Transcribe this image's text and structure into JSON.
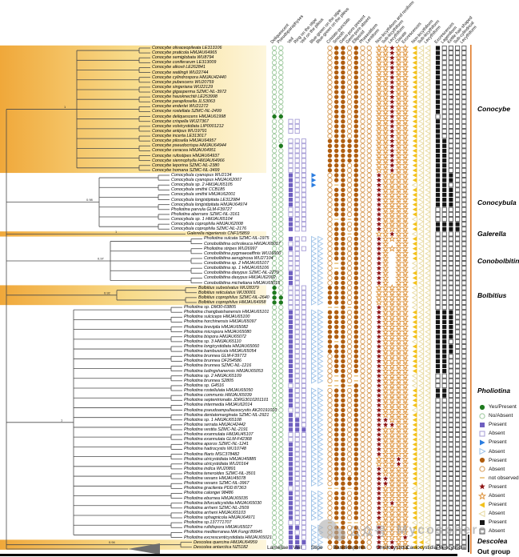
{
  "colors": {
    "highlight_left": "#f0a83a",
    "highlight_mid": "#f8dc8c",
    "highlight_right": "#fdf6dd",
    "tree_line": "#4a4a4a",
    "orange_bar": "#e07b2a",
    "black_bar": "#0a0a0a",
    "green_fill": "#1f7a1f",
    "green_outline": "#9cc89c",
    "purple_fill": "#6f5fc0",
    "purple_outline": "#a79ed6",
    "blue_fill": "#2b7de0",
    "blue_outline": "#9fc3e8",
    "brown_fill": "#b05e10",
    "brown_outline": "#d79b55",
    "star_fill": "#8e1414",
    "star_outline": "#de9540",
    "yellow_fill": "#f2c11d",
    "yellow_outline": "#e7d9a0",
    "black_fill": "#161616",
    "black_outline": "#555555",
    "dash": "#eac37d"
  },
  "headers": {
    "columns": [
      "Deliquescent",
      "Pseudoparaphyses",
      "Veil",
      "Ring on the stipe",
      "Veil on the pileus",
      "Blue-green on the stipe",
      "Blue-green on the pileus",
      "Cristate-punctate",
      "Smooth",
      "Germ-pore present",
      "Germ-pore absent",
      "Ellipsoid",
      "Phaseoliform",
      "Lentiform",
      "Non-lecythiform and reniform",
      "Sub-lecythiform",
      "Lecythiform",
      "Clavate",
      "Excrescences",
      "Non-lecythiform",
      "Sub-lecythiform",
      "Lecythiform",
      "Excrescences",
      "Lageniform",
      "Kettle hair-shaped",
      "Sub-cylindrical",
      "Lecythiform"
    ],
    "groups": [
      {
        "label": "Lamellae",
        "count": 2,
        "variant": "green"
      },
      {
        "label": "Veil",
        "count": 3,
        "variant": "purple"
      },
      {
        "label": "Stipe",
        "count": 2,
        "variant": "blue"
      },
      {
        "label": "Basidiospores",
        "count": 7,
        "variant": "brown"
      },
      {
        "label": "Cheilocystidia",
        "count": 5,
        "variant": "red-star"
      },
      {
        "label": "Caulocystidia",
        "count": 3,
        "variant": "yellow"
      },
      {
        "label": "Pileocystidia",
        "count": 5,
        "variant": "black"
      }
    ]
  },
  "legend": [
    {
      "variant": "green",
      "state": "filled",
      "label": "Yes/Present"
    },
    {
      "variant": "green",
      "state": "outline",
      "label": "No/Absent"
    },
    {
      "variant": "purple",
      "state": "filled",
      "label": "Present"
    },
    {
      "variant": "purple",
      "state": "outline",
      "label": "Absent"
    },
    {
      "variant": "blue",
      "state": "filled",
      "label": "Present"
    },
    {
      "variant": "blue",
      "state": "outline",
      "label": "Absent"
    },
    {
      "variant": "brown",
      "state": "filled",
      "label": "Present"
    },
    {
      "variant": "brown",
      "state": "outline",
      "label": "Absent"
    },
    {
      "variant": "dash",
      "state": "dash",
      "label": "not observed"
    },
    {
      "variant": "red-star",
      "state": "filled",
      "label": "Present"
    },
    {
      "variant": "red-star",
      "state": "outline",
      "label": "Absent"
    },
    {
      "variant": "yellow",
      "state": "filled",
      "label": "Present"
    },
    {
      "variant": "yellow",
      "state": "outline",
      "label": "Absent"
    },
    {
      "variant": "black",
      "state": "filled",
      "label": "Present"
    },
    {
      "variant": "black",
      "state": "outline",
      "label": "Absent"
    }
  ],
  "genera": [
    {
      "key": "conocybe",
      "label": "Conocybe",
      "rows": [
        0,
        25
      ],
      "highlight": true
    },
    {
      "key": "conocybula",
      "label": "Conocybula",
      "rows": [
        26,
        37
      ],
      "highlight": false
    },
    {
      "key": "galerella",
      "label": "Galerella",
      "rows": [
        38,
        38
      ],
      "highlight": true
    },
    {
      "key": "conobolbitina",
      "label": "Conobolbitina",
      "rows": [
        39,
        48
      ],
      "highlight": false
    },
    {
      "key": "bolbitius",
      "label": "Bolbitius",
      "rows": [
        49,
        52
      ],
      "highlight": true
    },
    {
      "key": "pholiotina",
      "label": "Pholiotina",
      "rows": [
        53,
        100
      ],
      "highlight": false
    },
    {
      "key": "descolea",
      "label": "Descolea",
      "rows": [
        101,
        102
      ],
      "highlight": true
    }
  ],
  "out_group_label": "Out group",
  "supports": [
    "1",
    "0.98",
    "1",
    "0.97",
    "0.92",
    "1",
    "0.94",
    "1"
  ],
  "watermark": {
    "logo": "wechat-logo",
    "text_cn": "公众号",
    "separator": "·",
    "text_en": "Mycosphere"
  },
  "rows": [
    [
      "Conocybe olivaceopileata LE313106",
      "conocybe",
      "oo|...|..|oXXoXoo|ooXoo|Xoo|Xoooo"
    ],
    [
      "Conocybe praticola HMJAU64965",
      "conocybe",
      "oo|...|..|oXXoXoo|ooXoo|Xoo|Xoooo"
    ],
    [
      "Conocybe semiglobata WU8794",
      "conocybe",
      "oo|...|..|oXXoXoo|ooXoo|Xoo|Xoooo"
    ],
    [
      "Conocybe coniferarum LE313009",
      "conocybe",
      "oo|...|..|oXXoXoo|ooXoo|Xoo|Xoooo"
    ],
    [
      "Conocybe alkovii LE262841",
      "conocybe",
      "oo|...|..|oXXoXoo|ooXoo|Xoo|Xoooo"
    ],
    [
      "Conocybe watlingii WU22744",
      "conocybe",
      "oo|...|..|oXXoXoo|ooXoo|Xoo|Xoooo"
    ],
    [
      "Conocybe cylindrospora HMJAU42440",
      "conocybe",
      "oo|...|..|oXXoXoo|ooXoo|Xoo|Xoooo"
    ],
    [
      "Conocybe pubescens WU20759",
      "conocybe",
      "oo|...|..|oXXoXoo|ooXoo|Xoo|Xoooo"
    ],
    [
      "Conocybe singeriana WU22129",
      "conocybe",
      "oo|...|..|oXXoXoo|ooXoo|Xoo|Xoooo"
    ],
    [
      "Conocybe gigasperma SZMC-NL-3972",
      "conocybe",
      "oo|...|..|oXXoXoo|ooXoo|Xoo|Xoooo"
    ],
    [
      "Conocybe hausknechtii LE253998",
      "conocybe",
      "oo|...|..|oXXoXoo|ooXoo|Xoo|Xoooo"
    ],
    [
      "Conocybe parapilosella JLS3063",
      "conocybe",
      "oo|...|..|oXXoXoo|ooXoo|Xoo|Xoooo"
    ],
    [
      "Conocybe enderlei WU21272",
      "conocybe",
      "oo|...|..|oXXoXoo|ooXoo|Xoo|Xoooo"
    ],
    [
      "Conocybe rostellata SZMC-NL-2499",
      "conocybe",
      "oo|...|..|oXXoXoo|ooXoo|Xoo|Xoooo"
    ],
    [
      "Conocybe deliquescens HMJAU61998",
      "conocybe",
      "XX|...|..|oXXoXoo|ooXoo|Xoo|ooooo"
    ],
    [
      "Conocybe crispella WU27367",
      "conocybe",
      "oo|oo.|..|oXXoXoo|ooXoo|Xoo|Xoooo"
    ],
    [
      "Conocybe volvicystidiata LIP0001212",
      "conocybe",
      "oo|oo.|..|oXXoXoo|ooXoo|Xoo|Xoooo"
    ],
    [
      "Conocybe antipus WU19791",
      "conocybe",
      "oo|oo.|..|oXXoXoo|ooXoo|Xoo|Xoooo"
    ],
    [
      "Conocybe incerta LE313017",
      "conocybe",
      "oo|...|..|oXXoXoo|ooXoo|Xoo|Xoooo"
    ],
    [
      "Conocybe pilosella HMJAU64957",
      "conocybe",
      "oo|ooo|..|XXXXXoo|ooXoo|Xoo|XXooo"
    ],
    [
      "Conocybe pseudocrispa HMJAU64944",
      "conocybe",
      "oX|ooo|..|XXXXXoo|ooXoo|Xoo|XXooo"
    ],
    [
      "Conocybe ceracea HMJAU64951",
      "conocybe",
      "oo|ooo|..|XXXXXoo|ooXoo|Xoo|XXooo"
    ],
    [
      "Conocybe rufostipes HMJAU64937",
      "conocybe",
      "oo|ooo|..|XXXXXoo|ooXoo|Xoo|XXooo"
    ],
    [
      "Conocybe siennophylla HMJAU64966",
      "conocybe",
      "oo|ooo|..|XXXXXoo|ooXoo|Xoo|XXooo"
    ],
    [
      "Conocybe leporina SZMC-NL-2380",
      "conocybe",
      "oo|ooo|..|XXXoXoo|ooXoo|Xoo|XXooo"
    ],
    [
      "Conocybe homana SZMC-NL-3499",
      "conocybe",
      "oo|ooo|..|XXXoXoo|ooXoo|Xoo|XXooo"
    ],
    [
      "Conocybula cyanopus WU2134",
      "conocybula",
      "oo|Xoo|X.|oXXoXoo|Xoooo|Xoo|XXXoo"
    ],
    [
      "Conocybula cyanopus HMJAU62007",
      "conocybula",
      "oo|Xoo|X.|oXXoXoo|Xoooo|Xoo|XXXoo"
    ],
    [
      "Conocybula sp. 2 HMJAU65105",
      "conocybula",
      "oo|Xoo|X.|o-XoXoo|Xoooo|ooo|XXooo"
    ],
    [
      "Conocybula smithii CCB185",
      "conocybula",
      "oo|Xoo|..|oXXoXoo|Xoooo|Xoo|XXXoo"
    ],
    [
      "Conocybula smithii HMJAU62001",
      "conocybula",
      "oo|Xoo|..|oXXoXoo|Xoooo|Xoo|XXXoo"
    ],
    [
      "Conocybula longistipitata LE312984",
      "conocybula",
      "oo|Xoo|..|oXXoXoo|Xoooo|Xoo|XXXoo"
    ],
    [
      "Conocybula longistipitata HMJAU64974",
      "conocybula",
      "oo|Xoo|..|oXXoXoo|Xoooo|Xoo|XXXoo"
    ],
    [
      "Pholiotina parvula GLM-F39727",
      "conocybula",
      "oo|ooo|..|oXXoXoo|Xoooo|Xoo|ooooo"
    ],
    [
      "Pholiotina aberrans SZMC-NL-3161",
      "conocybula",
      "oo|ooo|..|oXXoXoo|Xoooo|Xoo|ooooo"
    ],
    [
      "Conocybula sp. 1 HMJAU65104",
      "conocybula",
      "oo|Xoo|..|o-X-Xoo|Xoooo|ooo|ooooo"
    ],
    [
      "Conocybula coprophila HMJAU62008",
      "conocybula",
      "oo|Xoo|..|oXXoXoo|Xoooo|Xoo|XXXXo"
    ],
    [
      "Conocybula coprophila SZMC-NL-2176",
      "conocybula",
      "oo|Xoo|..|oXXoXoo|Xoooo|Xoo|XXXXo"
    ],
    [
      "Galerella nigeriensis CNF1/5859",
      "galerella",
      "oo|...|..|oXX-Xoo|ooXoo|ooo|ooooo"
    ],
    [
      "Pholiotina sulcata SZMC-NL-1975",
      "conobolbitina",
      "oo|Xoo|oo|oXXoXoo|Xoooo|Xoo|ooooo"
    ],
    [
      "Conobolbitina ochroleuca HMJAU65017",
      "conobolbitina",
      "oo|oo.|oo|oXXoXoo|Xo.oo|Xoo|ooooo"
    ],
    [
      "Pholiotina stripes WU26997",
      "conobolbitina",
      "oo|Xoo|oo|oXXoXoo|Xoooo|Xoo|ooooo"
    ],
    [
      "Conobolbitina pygmaeoaffinis WU16600",
      "conobolbitina",
      "oo|oo.|oo|oXXoXoo|Xo.oo|Xoo|ooooo"
    ],
    [
      "Conobolbitina aeruginosa WU27104",
      "conobolbitina",
      "oo|oo.|oo|oXXoXoo|Xo.oo|Xoo|ooooo"
    ],
    [
      "Conobolbitina sp. 2 HMJAU65107",
      "conobolbitina",
      "oo|oo.|oo|o-XoXoo|Xo.oo|ooo|ooooo"
    ],
    [
      "Conobolbitina sp. 1 HMJAU65106",
      "conobolbitina",
      "oo|oo.|oo|o-XoXoo|Xo.oo|ooo|ooooo"
    ],
    [
      "Conobolbitina dasypus SZMC-NL-2279",
      "conobolbitina",
      "oo|Xo.|oo|oXXoXoo|Xo.oo|Xoo|ooooo"
    ],
    [
      "Conobolbitina dasypus HMJAU62002",
      "conobolbitina",
      "oo|Xo.|oo|oXXoXoo|Xo.oo|Xoo|ooooo"
    ],
    [
      "Conobolbitina micheliana HMJAU65015",
      "conobolbitina",
      "oo|Xo.|oo|oXXoXoo|Xo.oo|Xoo|ooooo"
    ],
    [
      "Bolbitius subvolvatus WU28379",
      "bolbitius",
      "Xo|ooo|oo|XXXoXoo|ooooo|ooo|ooooo"
    ],
    [
      "Bolbitius reticulatus WU30001",
      "bolbitius",
      "Xo|ooo|oo|XXXoXoo|ooooo|ooo|ooooo"
    ],
    [
      "Bolbitius coprophilus SZMC-NL-2640",
      "bolbitius",
      "XX|ooo|oo|XXXoXoo|ooooo|ooo|ooooo"
    ],
    [
      "Bolbitius coprophilus HMJAU64958",
      "bolbitius",
      "XX|ooo|oo|XXXoXoo|ooooo|ooo|ooooo"
    ],
    [
      "Pholiotina sp. DM30-03805",
      "pholiotina",
      "oo|ooo|..|--X-Xoo|Xoooo|ooo|ooooo"
    ],
    [
      "Pholiotina changbaishanensis HMJAU65101",
      "pholiotina",
      "oo|Xoo|oo|XXXoXoo|Xoooo|Xoo|XXXoo"
    ],
    [
      "Pholiotina sulciceps HMJAU65100",
      "pholiotina",
      "oo|Xoo|oo|XXXoXoo|Xoooo|Xoo|XXXoo"
    ],
    [
      "Pholiotina horchinensis HMJAU65097",
      "pholiotina",
      "oo|Xoo|oo|XXXoXoo|Xoooo|Xoo|XXXoo"
    ],
    [
      "Pholiotina brevipila HMJAU65082",
      "pholiotina",
      "oo|Xoo|oo|XXXoXoo|Xoooo|Xoo|XXXoo"
    ],
    [
      "Pholiotina micropora HMJAU65080",
      "pholiotina",
      "oo|Xoo|oo|XXXoXoo|Xoooo|Xoo|XXXoo"
    ],
    [
      "Pholiotina bispora HMJAU65072",
      "pholiotina",
      "oo|Xoo|oo|XXXoXoo|Xoooo|Xoo|XXXoo"
    ],
    [
      "Pholiotina sp. 3 HMJAU65110",
      "pholiotina",
      "oo|Xoo|oo|X-XoXoo|Xoooo|ooo|XXooo"
    ],
    [
      "Pholiotina longicystidiata HMJAU65060",
      "pholiotina",
      "oo|Xoo|oo|XXXoXoo|Xoooo|Xoo|XXXoo"
    ],
    [
      "Pholiotina bambusicola HMJAU65054",
      "pholiotina",
      "oo|Xoo|oo|XXXoXoo|Xoooo|Xoo|XXXoo"
    ],
    [
      "Pholiotina brunnea GLM-F39772",
      "pholiotina",
      "oo|Xoo|oo|oXXoXoo|Xoooo|Xoo|XXooo"
    ],
    [
      "Pholiotina brunnea OF254586",
      "pholiotina",
      "oo|Xoo|oo|oXXoXoo|Xoooo|Xoo|XXooo"
    ],
    [
      "Pholiotina brunnea SZMC-NL-1216",
      "pholiotina",
      "oo|Xoo|oo|oXXoXoo|Xoooo|Xoo|XXooo"
    ],
    [
      "Pholiotina ludingshanensis HMJAU65053",
      "pholiotina",
      "oo|Xoo|oo|oXXoXoo|Xoooo|Xoo|XXooo"
    ],
    [
      "Pholiotina sp. 2 HMJAU65109",
      "pholiotina",
      "oo|Xoo|oo|o-Xo-oo|Xoooo|ooo|ooooo"
    ],
    [
      "Pholiotina brunnea S2805",
      "pholiotina",
      "oo|Xoo|oo|o-Xo-oo|Xoooo|ooo|ooooo"
    ],
    [
      "Pholiotina sp. G4516",
      "pholiotina",
      "oo|ooo|..|--X-Xoo|Xoooo|ooo|ooooo"
    ],
    [
      "Pholiotina rostellulata HMJAU65050",
      "pholiotina",
      "oo|Xoo|oo|oXXoXoo|Xoooo|Xoo|XXooo"
    ],
    [
      "Pholiotina communis HMJAU65039",
      "pholiotina",
      "oo|Xoo|oo|oXXoXoo|Xoooo|Xoo|XXooo"
    ],
    [
      "Pholiotina septentrionalis JDRG3010201101",
      "pholiotina",
      "oo|Xoo|oo|oXXoXoo|Xoooo|Xoo|ooooo"
    ],
    [
      "Pholiotina intermedia HMJAU62014",
      "pholiotina",
      "oo|Xoo|oo|oXXoXoo|Xoooo|Xoo|ooooo"
    ],
    [
      "Pholiotina pseudoampullaceocystis AK20191010",
      "pholiotina",
      "oo|ooo|oo|oXXoXoo|Xoooo|ooo|ooooo"
    ],
    [
      "Pholiotina dentatomarginata SZMC-NL-2921",
      "pholiotina",
      "oo|Xoo|oo|oXXoXoo|Xoooo|Xoo|ooooo"
    ],
    [
      "Pholiotina sp. 1 HMJAU65108",
      "pholiotina",
      "oo|XXo|oo|oXXoXoo|XXooo|Xoo|ooooo"
    ],
    [
      "Pholiotina serrata HMJAU42442",
      "pholiotina",
      "oo|XXo|oo|oXXoXoo|XXXoo|Xoo|ooooo"
    ],
    [
      "Pholiotina vestita SZMC-NL-2191",
      "pholiotina",
      "oo|XXX|oo|oXXoXoo|Xoooo|Xoo|ooooo"
    ],
    [
      "Pholiotina exannulata HMJAU45107",
      "pholiotina",
      "oo|ooo|oo|oXXoXoo|Xoooo|Xoo|ooooo"
    ],
    [
      "Pholiotina exannulata GLM-F42368",
      "pholiotina",
      "oo|ooo|oo|oXXoXoo|Xoooo|Xoo|ooooo"
    ],
    [
      "Pholiotina aporos SZMC-NL-1241",
      "pholiotina",
      "oo|Xoo|oo|oXXoXoo|Xoooo|Xoo|ooooo"
    ],
    [
      "Pholiotina hadrocystis WU10748",
      "pholiotina",
      "oo|Xoo|oo|oXXoXoo|Xoooo|Xoo|ooooo"
    ],
    [
      "Pholiotina filaris MSC378482",
      "pholiotina",
      "oo|Xoo|oo|oXXoXoo|Xoooo|Xoo|ooooo"
    ],
    [
      "Pholiotina utricystidiata HMJAU45885",
      "pholiotina",
      "oo|Xoo|oo|oXXoXoo|oooXo|Xoo|ooooo"
    ],
    [
      "Pholiotina utricystidiata WU20164",
      "pholiotina",
      "oo|Xoo|oo|oXXoXoo|oooXo|Xoo|ooooo"
    ],
    [
      "Pholiotina indica WU20891",
      "pholiotina",
      "oo|Xoo|oo|oXXoXoo|Xoooo|Xoo|ooooo"
    ],
    [
      "Pholiotina teneroides SZMC-NL-3501",
      "pholiotina",
      "oo|Xoo|oo|oXXoXoo|Xoooo|Xoo|ooooo"
    ],
    [
      "Pholiotina vexans HMJAU45078",
      "pholiotina",
      "oo|Xoo|oo|oXXXXoo|XXooo|Xoo|ooooo"
    ],
    [
      "Pholiotina vexans SZMC-NL-3967",
      "pholiotina",
      "oo|Xoo|oo|oXXXXoo|XXooo|Xoo|ooooo"
    ],
    [
      "Pholiotina gracilenta PDD:87363",
      "pholiotina",
      "oo|ooo|..|--X-Xoo|Xoooo|ooo|ooooo"
    ],
    [
      "Pholiotina calongei 98486",
      "pholiotina",
      "oo|Xoo|oo|oXXoXoo|Xoooo|Xoo|ooooo"
    ],
    [
      "Pholiotina eburnea HMJAU65035",
      "pholiotina",
      "oo|Xoo|oo|oXXoXoo|Xoooo|Xoo|ooooo"
    ],
    [
      "Pholiotina bifurcaticystidia HMJAU65030",
      "pholiotina",
      "oo|Xoo|oo|oXXoXoo|XoXoo|Xoo|ooooo"
    ],
    [
      "Pholiotina arrheni SZMC-NL-2509",
      "pholiotina",
      "oo|Xoo|oo|oXXoXoo|Xoooo|Xoo|ooooo"
    ],
    [
      "Pholiotina arrheni HMJAU65103",
      "pholiotina",
      "oo|Xoo|oo|oXXoXoo|Xoooo|Xoo|ooooo"
    ],
    [
      "Pholiotina sphagnicola HMJAU64971",
      "pholiotina",
      "oo|Xoo|oo|oXXoXoo|Xoooo|Xoo|ooooo"
    ],
    [
      "Pholiotina sp.137771707",
      "pholiotina",
      "oo|ooo|..|--X--oo|ooooo|ooo|ooooo"
    ],
    [
      "Pholiotina rufidispora HMJAU65027",
      "pholiotina",
      "oo|XXo|oo|oXXoXoo|Xoooo|Xoo|ooooo"
    ],
    [
      "Pholiotina mediterranea MA:Fungi:89945",
      "pholiotina",
      "oo|Xoo|oo|oXXoXoo|Xoooo|Xoo|ooooo"
    ],
    [
      "Pholiotina excrescenticystidiata HMJAU65021",
      "pholiotina",
      "oo|XXo|oo|oXXoXoo|XoooX|Xoo|ooooo"
    ],
    [
      "Descolea quercina HMJAU64959",
      "descolea",
      "oo|XXX|oo|XXXXXXo|XoXoo|XXo|ooooo"
    ],
    [
      "Descolea antarctica NZ5182",
      "descolea",
      "oo|XXo|oo|oXXXXXo|XoXoo|XXo|ooooo"
    ]
  ]
}
